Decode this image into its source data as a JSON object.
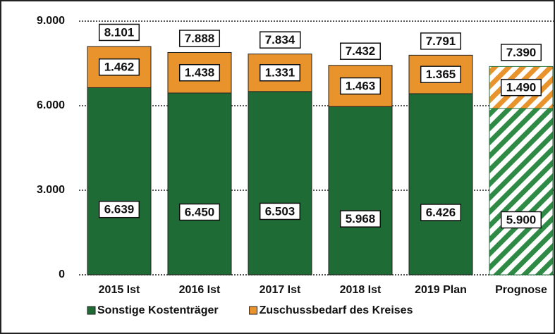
{
  "chart_data": {
    "type": "stacked_bar",
    "categories": [
      "2015 Ist",
      "2016 Ist",
      "2017 Ist",
      "2018 Ist",
      "2019 Plan",
      "Prognose"
    ],
    "series": [
      {
        "name": "Sonstige Kostenträger",
        "color": "#1f6b36",
        "values": [
          6639,
          6450,
          6503,
          5968,
          6426,
          5900
        ],
        "value_labels": [
          "6.639",
          "6.450",
          "6.503",
          "5.968",
          "6.426",
          "5.900"
        ]
      },
      {
        "name": "Zuschussbedarf des Kreises",
        "color": "#e8932c",
        "values": [
          1462,
          1438,
          1331,
          1463,
          1365,
          1490
        ],
        "value_labels": [
          "1.462",
          "1.438",
          "1.331",
          "1.463",
          "1.365",
          "1.490"
        ]
      }
    ],
    "totals": {
      "values": [
        8101,
        7888,
        7834,
        7432,
        7791,
        7390
      ],
      "value_labels": [
        "8.101",
        "7.888",
        "7.834",
        "7.432",
        "7.791",
        "7.390"
      ]
    },
    "hatch": [
      false,
      false,
      false,
      false,
      false,
      true
    ],
    "ylim": [
      0,
      9000
    ],
    "yticks": [
      0,
      {
        "value": 3000,
        "label": "3.000"
      },
      {
        "value": 6000,
        "label": "6.000"
      },
      {
        "value": 9000,
        "label": "9.000"
      }
    ],
    "grid": true
  }
}
